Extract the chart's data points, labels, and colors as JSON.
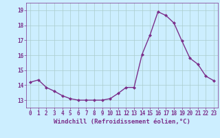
{
  "x": [
    0,
    1,
    2,
    3,
    4,
    5,
    6,
    7,
    8,
    9,
    10,
    11,
    12,
    13,
    14,
    15,
    16,
    17,
    18,
    19,
    20,
    21,
    22,
    23
  ],
  "y": [
    14.2,
    14.35,
    13.85,
    13.6,
    13.3,
    13.1,
    13.0,
    13.0,
    13.0,
    13.0,
    13.1,
    13.45,
    13.85,
    13.85,
    16.05,
    17.35,
    18.9,
    18.65,
    18.15,
    16.95,
    15.8,
    15.4,
    14.6,
    14.3
  ],
  "line_color": "#7b2f8a",
  "marker": "D",
  "markersize": 2.0,
  "linewidth": 1.0,
  "xlabel": "Windchill (Refroidissement éolien,°C)",
  "xlabel_fontsize": 6.5,
  "bg_color": "#cceeff",
  "grid_color": "#aacccc",
  "ylim": [
    12.5,
    19.5
  ],
  "xlim": [
    -0.5,
    23.5
  ],
  "yticks": [
    13,
    14,
    15,
    16,
    17,
    18,
    19
  ],
  "xtick_labels": [
    "0",
    "1",
    "2",
    "3",
    "4",
    "5",
    "6",
    "7",
    "8",
    "9",
    "10",
    "11",
    "12",
    "13",
    "14",
    "15",
    "16",
    "17",
    "18",
    "19",
    "20",
    "21",
    "22",
    "23"
  ],
  "tick_fontsize": 5.5,
  "axis_label_color": "#7b2f8a"
}
